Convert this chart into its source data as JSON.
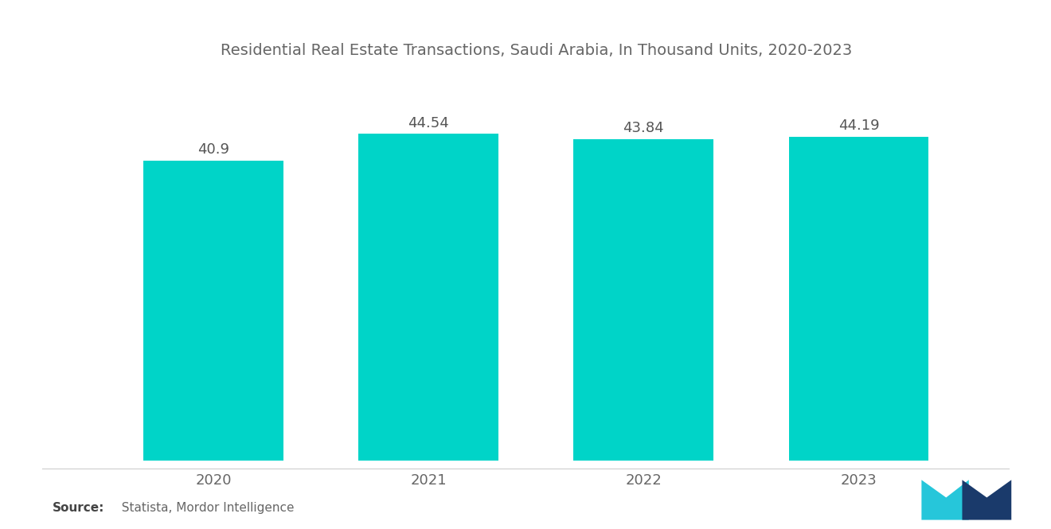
{
  "title": "Residential Real Estate Transactions, Saudi Arabia, In Thousand Units, 2020-2023",
  "categories": [
    "2020",
    "2021",
    "2022",
    "2023"
  ],
  "values": [
    40.9,
    44.54,
    43.84,
    44.19
  ],
  "bar_color": "#00D4C8",
  "value_labels": [
    "40.9",
    "44.54",
    "43.84",
    "44.19"
  ],
  "title_fontsize": 14,
  "label_fontsize": 13,
  "tick_fontsize": 13,
  "title_color": "#666666",
  "tick_color": "#666666",
  "value_color": "#555555",
  "source_bold": "Source:",
  "source_normal": "  Statista, Mordor Intelligence",
  "background_color": "#ffffff",
  "ylim": [
    0,
    52
  ],
  "bar_width": 0.65
}
